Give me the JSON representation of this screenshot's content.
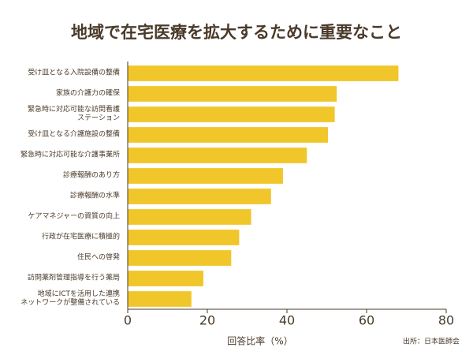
{
  "chart_data": {
    "type": "bar",
    "orientation": "horizontal",
    "title": "地域で在宅医療を拡大するために重要なこと",
    "categories": [
      "受け皿となる入院設備の整備",
      "家族の介護力の確保",
      "緊急時に対応可能な訪問看護\nステーション",
      "受け皿となる介護施設の整備",
      "緊急時に対応可能な介護事業所",
      "診療報酬のあり方",
      "診療報酬の水準",
      "ケアマネジャーの資質の向上",
      "行政が在宅医療に積極的",
      "住民への啓発",
      "訪問薬剤管理指導を行う薬局",
      "地域にICTを活用した連携\nネットワークが整備されている"
    ],
    "values": [
      68,
      52.5,
      52,
      50.3,
      45,
      39,
      36,
      31,
      28,
      26,
      19,
      16
    ],
    "color": "#f0c62a",
    "xlim": [
      0,
      80
    ],
    "xticks": [
      0,
      20,
      40,
      60,
      80
    ],
    "xlabel": "回答比率（%）",
    "source": "出所：日本医師会"
  }
}
